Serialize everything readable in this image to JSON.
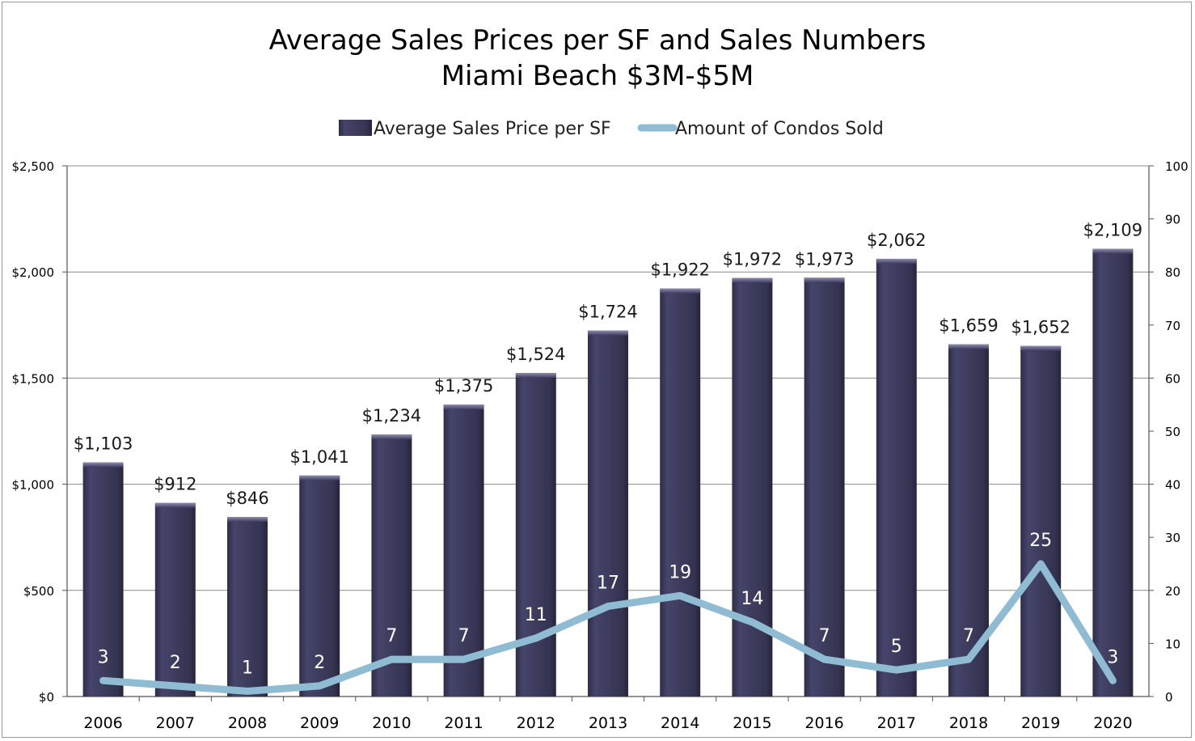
{
  "chart_data": {
    "type": "bar",
    "title": "Average Sales Prices per SF and Sales Numbers",
    "subtitle": "Miami Beach $3M-$5M",
    "categories": [
      "2006",
      "2007",
      "2008",
      "2009",
      "2010",
      "2011",
      "2012",
      "2013",
      "2014",
      "2015",
      "2016",
      "2017",
      "2018",
      "2019",
      "2020"
    ],
    "series": [
      {
        "name": "Average Sales Price per SF",
        "type": "bar",
        "axis": "left",
        "color": "#3b3a58",
        "values": [
          1103,
          912,
          846,
          1041,
          1234,
          1375,
          1524,
          1724,
          1922,
          1972,
          1973,
          2062,
          1659,
          1652,
          2109
        ],
        "labels": [
          "$1,103",
          "$912",
          "$846",
          "$1,041",
          "$1,234",
          "$1,375",
          "$1,524",
          "$1,724",
          "$1,922",
          "$1,972",
          "$1,973",
          "$2,062",
          "$1,659",
          "$1,652",
          "$2,109"
        ]
      },
      {
        "name": "Amount of Condos Sold",
        "type": "line",
        "axis": "right",
        "color": "#8fbcd2",
        "values": [
          3,
          2,
          1,
          2,
          7,
          7,
          11,
          17,
          19,
          14,
          7,
          5,
          7,
          25,
          3
        ],
        "labels": [
          "3",
          "2",
          "1",
          "2",
          "7",
          "7",
          "11",
          "17",
          "19",
          "14",
          "7",
          "5",
          "7",
          "25",
          "3"
        ]
      }
    ],
    "y_left": {
      "min": 0,
      "max": 2500,
      "ticks": [
        0,
        500,
        1000,
        1500,
        2000,
        2500
      ],
      "tick_labels": [
        "$0",
        "$500",
        "$1,000",
        "$1,500",
        "$2,000",
        "$2,500"
      ]
    },
    "y_right": {
      "min": 0,
      "max": 100,
      "ticks": [
        0,
        10,
        20,
        30,
        40,
        50,
        60,
        70,
        80,
        90,
        100
      ],
      "tick_labels": [
        "0",
        "10",
        "20",
        "30",
        "40",
        "50",
        "60",
        "70",
        "80",
        "90",
        "100"
      ]
    },
    "grid": true,
    "legend": "top"
  }
}
